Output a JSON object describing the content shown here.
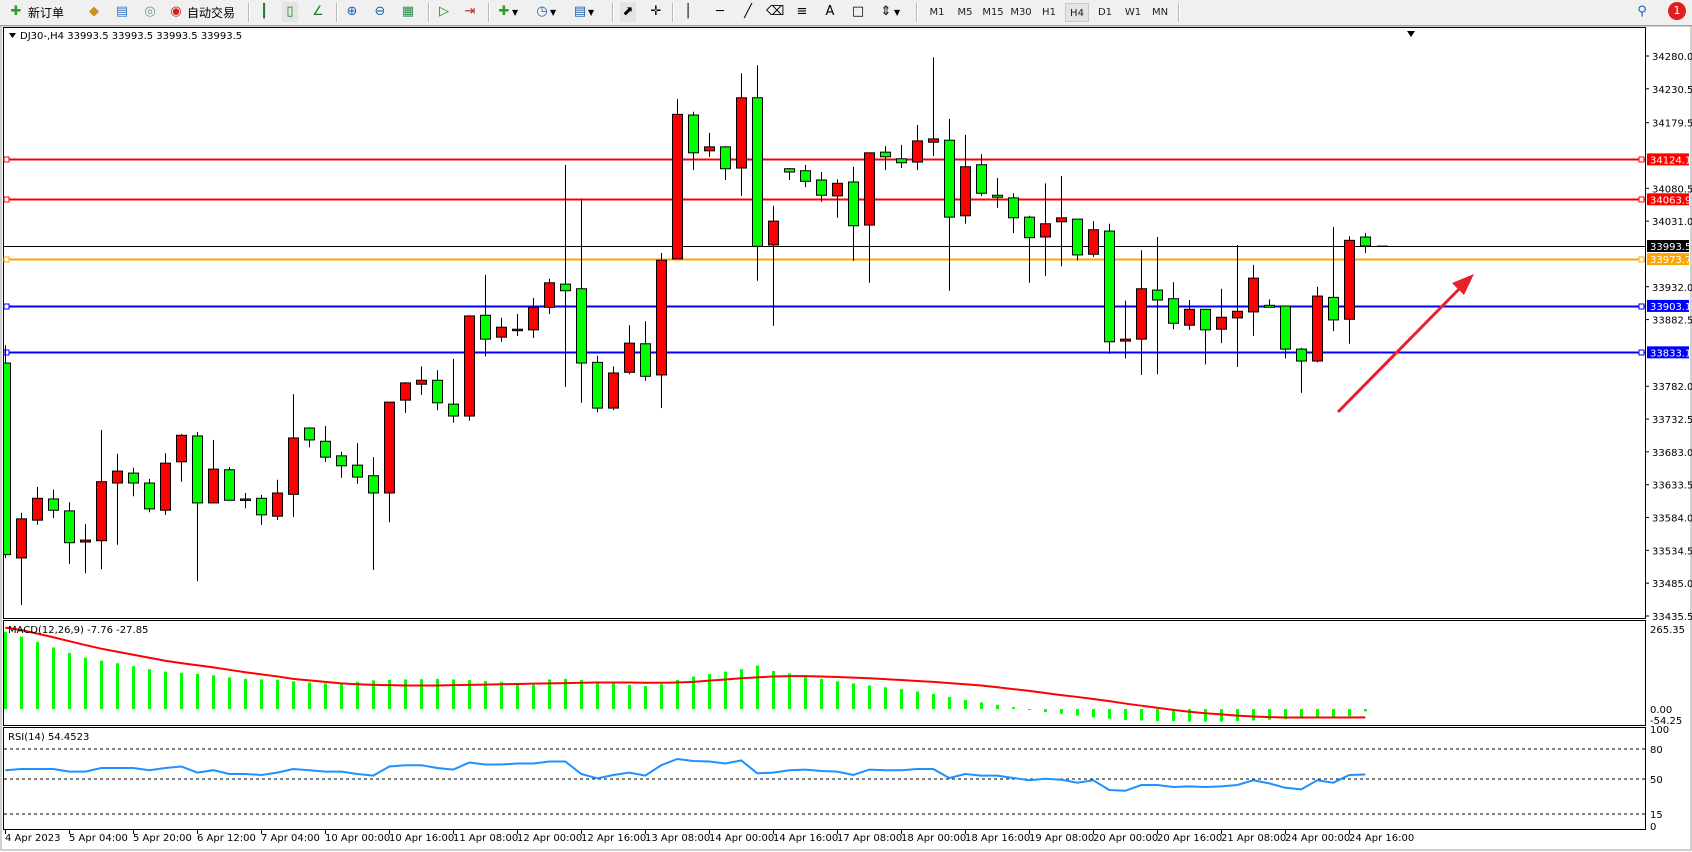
{
  "toolbar": {
    "new_order_label": "新订单",
    "auto_trading_label": "自动交易",
    "timeframes": [
      "M1",
      "M5",
      "M15",
      "M30",
      "H1",
      "H4",
      "D1",
      "W1",
      "MN"
    ],
    "active_timeframe": "H4",
    "notification_count": "1",
    "icons": [
      "new-order-icon",
      "market-watch-icon",
      "navigator-icon",
      "signals-icon",
      "auto-trading-icon",
      "bar-chart-icon",
      "candlestick-icon",
      "line-chart-icon",
      "zoom-in-icon",
      "zoom-out-icon",
      "tile-windows-icon",
      "auto-scroll-icon",
      "chart-shift-icon",
      "indicators-icon",
      "periods-icon",
      "templates-icon",
      "cursor-icon",
      "crosshair-icon",
      "vertical-line-icon",
      "horizontal-line-icon",
      "trendline-icon",
      "equidistant-channel-icon",
      "fibonacci-icon",
      "text-icon",
      "text-label-icon",
      "arrows-icon",
      "search-icon",
      "notification-icon"
    ]
  },
  "chart": {
    "header": "DJ30-,H4  33993.5 33993.5 33993.5 33993.5",
    "current_price": "33993.5",
    "price_ticks": [
      "34280.0",
      "34230.5",
      "34179.5",
      "34080.5",
      "34031.0",
      "33932.0",
      "33882.5",
      "33782.0",
      "33732.5",
      "33683.0",
      "33633.5",
      "33584.0",
      "33534.5",
      "33485.0",
      "33435.5"
    ],
    "horizontal_lines": [
      {
        "label": "34124.1",
        "color": "#ff0000"
      },
      {
        "label": "34063.9",
        "color": "#ff0000"
      },
      {
        "label": "33973.7",
        "color": "#ffa500"
      },
      {
        "label": "33903.1",
        "color": "#0000ff"
      },
      {
        "label": "33833.1",
        "color": "#0000ff"
      }
    ],
    "time_labels": [
      "4 Apr 2023",
      "5 Apr 04:00",
      "5 Apr 20:00",
      "6 Apr 12:00",
      "7 Apr 04:00",
      "10 Apr 00:00",
      "10 Apr 16:00",
      "11 Apr 08:00",
      "12 Apr 00:00",
      "12 Apr 16:00",
      "13 Apr 08:00",
      "14 Apr 00:00",
      "14 Apr 16:00",
      "17 Apr 08:00",
      "18 Apr 00:00",
      "18 Apr 16:00",
      "19 Apr 08:00",
      "20 Apr 00:00",
      "20 Apr 16:00",
      "21 Apr 08:00",
      "24 Apr 00:00",
      "24 Apr 16:00"
    ],
    "macd": {
      "label": "MACD(12,26,9) -7.76 -27.85",
      "axis_labels": [
        "265.35",
        "0.00",
        "-54.25"
      ]
    },
    "rsi": {
      "label": "RSI(14) 54.4523",
      "axis_labels": [
        "100",
        "80",
        "50",
        "15",
        "0"
      ]
    },
    "colors": {
      "bull": "#ff0000",
      "bear": "#00ff00",
      "macd_hist": "#00ff00",
      "macd_signal": "#ff0000",
      "rsi": "#1e90ff",
      "annotation_arrow": "#e8202a"
    }
  },
  "chart_data": {
    "type": "candlestick",
    "symbol": "DJ30-",
    "timeframe": "H4",
    "ylim": [
      33435.5,
      34280.0
    ],
    "ohlc": [
      [
        33817,
        33844,
        33523,
        33528
      ],
      [
        33523,
        33591,
        33452,
        33582
      ],
      [
        33580,
        33630,
        33573,
        33613
      ],
      [
        33612,
        33626,
        33583,
        33595
      ],
      [
        33594,
        33607,
        33514,
        33546
      ],
      [
        33547,
        33574,
        33500,
        33550
      ],
      [
        33549,
        33716,
        33506,
        33638
      ],
      [
        33636,
        33680,
        33543,
        33654
      ],
      [
        33651,
        33659,
        33616,
        33636
      ],
      [
        33636,
        33642,
        33592,
        33597
      ],
      [
        33595,
        33681,
        33588,
        33666
      ],
      [
        33668,
        33710,
        33638,
        33708
      ],
      [
        33707,
        33713,
        33488,
        33606
      ],
      [
        33606,
        33701,
        33606,
        33657
      ],
      [
        33656,
        33660,
        33610,
        33610
      ],
      [
        33612,
        33621,
        33598,
        33612
      ],
      [
        33613,
        33618,
        33573,
        33588
      ],
      [
        33586,
        33641,
        33580,
        33621
      ],
      [
        33619,
        33770,
        33585,
        33704
      ],
      [
        33719,
        33720,
        33690,
        33701
      ],
      [
        33699,
        33722,
        33668,
        33675
      ],
      [
        33677,
        33683,
        33644,
        33662
      ],
      [
        33663,
        33696,
        33635,
        33645
      ],
      [
        33647,
        33675,
        33505,
        33621
      ],
      [
        33621,
        33758,
        33577,
        33758
      ],
      [
        33761,
        33788,
        33742,
        33787
      ],
      [
        33785,
        33812,
        33769,
        33791
      ],
      [
        33791,
        33806,
        33746,
        33757
      ],
      [
        33755,
        33823,
        33727,
        33737
      ],
      [
        33737,
        33889,
        33730,
        33888
      ],
      [
        33889,
        33950,
        33827,
        33853
      ],
      [
        33856,
        33885,
        33849,
        33871
      ],
      [
        33868,
        33891,
        33858,
        33868
      ],
      [
        33867,
        33915,
        33855,
        33901
      ],
      [
        33901,
        33944,
        33891,
        33938
      ],
      [
        33936,
        34116,
        33781,
        33926
      ],
      [
        33929,
        34064,
        33757,
        33817
      ],
      [
        33818,
        33828,
        33743,
        33749
      ],
      [
        33749,
        33812,
        33746,
        33802
      ],
      [
        33803,
        33874,
        33800,
        33847
      ],
      [
        33846,
        33880,
        33790,
        33797
      ],
      [
        33799,
        33983,
        33749,
        33972
      ],
      [
        33974,
        34215,
        33974,
        34192
      ],
      [
        34191,
        34196,
        34108,
        34134
      ],
      [
        34137,
        34164,
        34128,
        34143
      ],
      [
        34143,
        34144,
        34093,
        34110
      ],
      [
        34111,
        34254,
        34069,
        34217
      ],
      [
        34217,
        34266,
        33941,
        33993
      ],
      [
        33995,
        34054,
        33873,
        34031
      ],
      [
        34110,
        34111,
        34093,
        34105
      ],
      [
        34107,
        34116,
        34082,
        34091
      ],
      [
        34093,
        34105,
        34060,
        34070
      ],
      [
        34069,
        34094,
        34036,
        34088
      ],
      [
        34090,
        34113,
        33971,
        34024
      ],
      [
        34025,
        34134,
        33938,
        34134
      ],
      [
        34135,
        34144,
        34108,
        34128
      ],
      [
        34125,
        34146,
        34111,
        34119
      ],
      [
        34120,
        34176,
        34108,
        34152
      ],
      [
        34150,
        34278,
        34129,
        34155
      ],
      [
        34153,
        34185,
        33926,
        34037
      ],
      [
        34039,
        34161,
        34027,
        34113
      ],
      [
        34116,
        34132,
        34069,
        34073
      ],
      [
        34070,
        34096,
        34051,
        34067
      ],
      [
        34066,
        34073,
        34013,
        34036
      ],
      [
        34037,
        34039,
        33938,
        34006
      ],
      [
        34007,
        34088,
        33948,
        34027
      ],
      [
        34030,
        34099,
        33963,
        34036
      ],
      [
        34034,
        34034,
        33972,
        33980
      ],
      [
        33981,
        34031,
        33977,
        34018
      ],
      [
        34016,
        34027,
        33831,
        33849
      ],
      [
        33850,
        33911,
        33824,
        33853
      ],
      [
        33853,
        33987,
        33799,
        33929
      ],
      [
        33927,
        34007,
        33800,
        33912
      ],
      [
        33914,
        33939,
        33868,
        33877
      ],
      [
        33874,
        33912,
        33867,
        33898
      ],
      [
        33898,
        33898,
        33815,
        33867
      ],
      [
        33868,
        33929,
        33847,
        33886
      ],
      [
        33885,
        33995,
        33811,
        33895
      ],
      [
        33894,
        33965,
        33858,
        33945
      ],
      [
        33904,
        33913,
        33901,
        33901
      ],
      [
        33903,
        33903,
        33824,
        33838
      ],
      [
        33838,
        33840,
        33772,
        33820
      ],
      [
        33820,
        33932,
        33818,
        33918
      ],
      [
        33916,
        34022,
        33865,
        33882
      ],
      [
        33883,
        34008,
        33846,
        34002
      ],
      [
        34007,
        34013,
        33983,
        33993.5
      ]
    ],
    "horizontal_levels": [
      34124.1,
      34063.9,
      33973.7,
      33903.1,
      33833.1
    ],
    "macd_histogram": [
      255,
      240,
      222,
      204,
      186,
      170,
      160,
      152,
      142,
      132,
      124,
      120,
      116,
      112,
      105,
      100,
      98,
      96,
      92,
      88,
      85,
      83,
      90,
      95,
      97,
      98,
      99,
      100,
      98,
      96,
      93,
      90,
      86,
      80,
      98,
      100,
      96,
      90,
      85,
      80,
      76,
      82,
      96,
      108,
      116,
      124,
      132,
      144,
      126,
      118,
      110,
      100,
      92,
      85,
      78,
      72,
      66,
      58,
      50,
      40,
      30,
      22,
      14,
      6,
      -2,
      -10,
      -16,
      -22,
      -28,
      -32,
      -36,
      -38,
      -40,
      -40,
      -42,
      -42,
      -42,
      -40,
      -38,
      -36,
      -34,
      -32,
      -30,
      -28,
      -24,
      -7.76
    ],
    "macd_signal": [
      270,
      262,
      250,
      238,
      225,
      212,
      200,
      190,
      180,
      170,
      160,
      152,
      145,
      138,
      130,
      122,
      115,
      108,
      100,
      95,
      90,
      85,
      82,
      80,
      79,
      78,
      78,
      78,
      79,
      80,
      81,
      82,
      83,
      84,
      85,
      86,
      87,
      88,
      88,
      88,
      87,
      87,
      88,
      90,
      94,
      98,
      102,
      105,
      108,
      109,
      109,
      108,
      106,
      104,
      102,
      99,
      96,
      93,
      90,
      86,
      82,
      78,
      72,
      66,
      60,
      53,
      46,
      40,
      33,
      26,
      18,
      11,
      4,
      -3,
      -9,
      -14,
      -18,
      -22,
      -25,
      -27,
      -28,
      -28,
      -28,
      -28,
      -28,
      -27.85
    ],
    "macd_range": [
      -54.25,
      265.35
    ],
    "rsi": [
      58.8,
      60,
      60,
      60,
      57.4,
      57.4,
      61,
      61,
      61,
      58.8,
      61,
      62.5,
      56.4,
      58.8,
      55,
      55,
      54,
      56.4,
      60,
      58.8,
      57.4,
      57.4,
      55,
      53.4,
      62.5,
      63.8,
      63.8,
      61,
      59.4,
      66.5,
      64.5,
      64.5,
      65.5,
      65.5,
      67.5,
      67.5,
      55,
      50.7,
      54,
      56.4,
      53.4,
      63.8,
      70,
      68,
      67.5,
      65.5,
      68.5,
      55.7,
      56.4,
      58.8,
      59.4,
      58,
      57.4,
      54,
      59.4,
      58.8,
      58.8,
      60,
      60,
      51,
      55,
      53.4,
      53.4,
      51,
      48.7,
      50.3,
      49.3,
      46.3,
      48.7,
      39,
      38.2,
      44,
      44,
      42,
      42.6,
      42,
      42.6,
      44,
      48.7,
      45.6,
      41.2,
      39.6,
      48.7,
      46.3,
      54,
      54.4523
    ],
    "rsi_levels": [
      80,
      50,
      15
    ],
    "rsi_range": [
      0,
      100
    ]
  }
}
